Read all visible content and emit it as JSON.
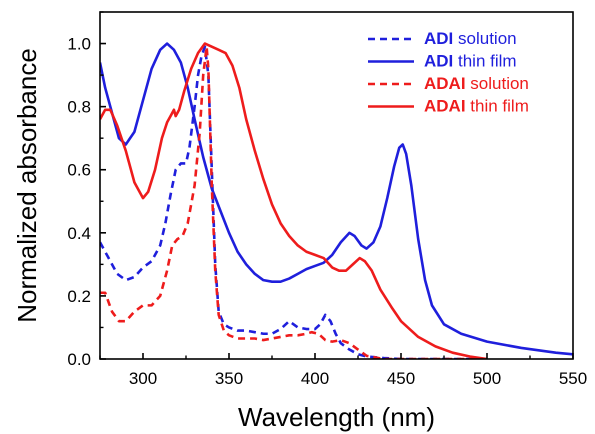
{
  "chart_data": {
    "type": "line",
    "xlabel": "Wavelength (nm)",
    "ylabel": "Normalized absorbance",
    "xlim": [
      275,
      550
    ],
    "ylim": [
      0.0,
      1.1
    ],
    "x_ticks": [
      300,
      350,
      400,
      450,
      500,
      550
    ],
    "x_tick_labels": [
      "300",
      "350",
      "400",
      "450",
      "500",
      "550"
    ],
    "y_ticks": [
      0.0,
      0.2,
      0.4,
      0.6,
      0.8,
      1.0
    ],
    "y_tick_labels": [
      "0.0",
      "0.2",
      "0.4",
      "0.6",
      "0.8",
      "1.0"
    ],
    "legend_position": "top-right",
    "series": [
      {
        "name": "ADI solution",
        "legend_bold": "ADI",
        "legend_rest": " solution",
        "color": "#1f1fdc",
        "style": "dashed",
        "points": [
          [
            275,
            0.37
          ],
          [
            280,
            0.32
          ],
          [
            285,
            0.27
          ],
          [
            290,
            0.25
          ],
          [
            295,
            0.26
          ],
          [
            300,
            0.29
          ],
          [
            305,
            0.31
          ],
          [
            310,
            0.36
          ],
          [
            313,
            0.43
          ],
          [
            316,
            0.52
          ],
          [
            319,
            0.6
          ],
          [
            322,
            0.62
          ],
          [
            325,
            0.62
          ],
          [
            327,
            0.67
          ],
          [
            330,
            0.8
          ],
          [
            332,
            0.9
          ],
          [
            334,
            0.96
          ],
          [
            336,
            0.99
          ],
          [
            338,
            0.9
          ],
          [
            340,
            0.6
          ],
          [
            342,
            0.3
          ],
          [
            344,
            0.15
          ],
          [
            347,
            0.11
          ],
          [
            350,
            0.1
          ],
          [
            355,
            0.09
          ],
          [
            360,
            0.09
          ],
          [
            365,
            0.085
          ],
          [
            370,
            0.08
          ],
          [
            375,
            0.08
          ],
          [
            380,
            0.095
          ],
          [
            385,
            0.12
          ],
          [
            390,
            0.1
          ],
          [
            395,
            0.095
          ],
          [
            400,
            0.095
          ],
          [
            403,
            0.11
          ],
          [
            406,
            0.14
          ],
          [
            409,
            0.12
          ],
          [
            412,
            0.08
          ],
          [
            415,
            0.05
          ],
          [
            420,
            0.03
          ],
          [
            425,
            0.015
          ],
          [
            430,
            0.008
          ],
          [
            440,
            0.003
          ],
          [
            450,
            0.0
          ],
          [
            500,
            0.0
          ]
        ]
      },
      {
        "name": "ADI thin film",
        "legend_bold": "ADI",
        "legend_rest": " thin film",
        "color": "#1f1fdc",
        "style": "solid",
        "points": [
          [
            275,
            0.94
          ],
          [
            278,
            0.86
          ],
          [
            282,
            0.78
          ],
          [
            286,
            0.7
          ],
          [
            290,
            0.68
          ],
          [
            295,
            0.72
          ],
          [
            300,
            0.82
          ],
          [
            305,
            0.92
          ],
          [
            310,
            0.98
          ],
          [
            314,
            1.0
          ],
          [
            318,
            0.98
          ],
          [
            322,
            0.94
          ],
          [
            326,
            0.86
          ],
          [
            330,
            0.76
          ],
          [
            335,
            0.64
          ],
          [
            340,
            0.54
          ],
          [
            345,
            0.47
          ],
          [
            350,
            0.4
          ],
          [
            355,
            0.34
          ],
          [
            360,
            0.3
          ],
          [
            365,
            0.27
          ],
          [
            370,
            0.25
          ],
          [
            375,
            0.245
          ],
          [
            380,
            0.245
          ],
          [
            385,
            0.255
          ],
          [
            390,
            0.27
          ],
          [
            395,
            0.285
          ],
          [
            400,
            0.295
          ],
          [
            405,
            0.305
          ],
          [
            410,
            0.33
          ],
          [
            415,
            0.37
          ],
          [
            420,
            0.4
          ],
          [
            423,
            0.39
          ],
          [
            427,
            0.36
          ],
          [
            430,
            0.35
          ],
          [
            434,
            0.37
          ],
          [
            438,
            0.42
          ],
          [
            442,
            0.51
          ],
          [
            446,
            0.61
          ],
          [
            449,
            0.67
          ],
          [
            451,
            0.68
          ],
          [
            453,
            0.65
          ],
          [
            456,
            0.55
          ],
          [
            460,
            0.38
          ],
          [
            464,
            0.25
          ],
          [
            468,
            0.17
          ],
          [
            475,
            0.11
          ],
          [
            485,
            0.08
          ],
          [
            500,
            0.055
          ],
          [
            520,
            0.035
          ],
          [
            540,
            0.02
          ],
          [
            550,
            0.015
          ]
        ]
      },
      {
        "name": "ADAI solution",
        "legend_bold": "ADAI",
        "legend_rest": " solution",
        "color": "#ee1c1c",
        "style": "dashed",
        "points": [
          [
            275,
            0.21
          ],
          [
            278,
            0.21
          ],
          [
            282,
            0.15
          ],
          [
            286,
            0.12
          ],
          [
            290,
            0.12
          ],
          [
            295,
            0.15
          ],
          [
            300,
            0.17
          ],
          [
            305,
            0.17
          ],
          [
            310,
            0.2
          ],
          [
            314,
            0.28
          ],
          [
            317,
            0.36
          ],
          [
            320,
            0.38
          ],
          [
            323,
            0.39
          ],
          [
            326,
            0.43
          ],
          [
            330,
            0.55
          ],
          [
            333,
            0.72
          ],
          [
            335,
            0.9
          ],
          [
            337,
            0.99
          ],
          [
            338,
            0.92
          ],
          [
            340,
            0.55
          ],
          [
            342,
            0.28
          ],
          [
            344,
            0.14
          ],
          [
            347,
            0.09
          ],
          [
            350,
            0.075
          ],
          [
            355,
            0.065
          ],
          [
            360,
            0.065
          ],
          [
            365,
            0.065
          ],
          [
            370,
            0.06
          ],
          [
            375,
            0.065
          ],
          [
            380,
            0.07
          ],
          [
            385,
            0.075
          ],
          [
            390,
            0.075
          ],
          [
            395,
            0.08
          ],
          [
            398,
            0.085
          ],
          [
            402,
            0.08
          ],
          [
            406,
            0.06
          ],
          [
            410,
            0.055
          ],
          [
            415,
            0.06
          ],
          [
            420,
            0.05
          ],
          [
            425,
            0.03
          ],
          [
            430,
            0.01
          ],
          [
            440,
            0.0
          ],
          [
            500,
            0.0
          ]
        ]
      },
      {
        "name": "ADAI thin film",
        "legend_bold": "ADAI",
        "legend_rest": " thin film",
        "color": "#ee1c1c",
        "style": "solid",
        "points": [
          [
            275,
            0.76
          ],
          [
            278,
            0.79
          ],
          [
            281,
            0.79
          ],
          [
            285,
            0.74
          ],
          [
            290,
            0.66
          ],
          [
            295,
            0.56
          ],
          [
            300,
            0.51
          ],
          [
            303,
            0.53
          ],
          [
            307,
            0.6
          ],
          [
            311,
            0.7
          ],
          [
            314,
            0.75
          ],
          [
            316,
            0.77
          ],
          [
            318,
            0.79
          ],
          [
            319,
            0.77
          ],
          [
            321,
            0.79
          ],
          [
            324,
            0.85
          ],
          [
            328,
            0.92
          ],
          [
            332,
            0.97
          ],
          [
            336,
            1.0
          ],
          [
            340,
            0.99
          ],
          [
            344,
            0.98
          ],
          [
            348,
            0.97
          ],
          [
            352,
            0.93
          ],
          [
            356,
            0.86
          ],
          [
            360,
            0.76
          ],
          [
            365,
            0.66
          ],
          [
            370,
            0.57
          ],
          [
            375,
            0.49
          ],
          [
            380,
            0.43
          ],
          [
            385,
            0.39
          ],
          [
            390,
            0.36
          ],
          [
            395,
            0.34
          ],
          [
            400,
            0.33
          ],
          [
            405,
            0.32
          ],
          [
            410,
            0.29
          ],
          [
            414,
            0.28
          ],
          [
            418,
            0.28
          ],
          [
            422,
            0.3
          ],
          [
            426,
            0.32
          ],
          [
            429,
            0.31
          ],
          [
            433,
            0.28
          ],
          [
            438,
            0.22
          ],
          [
            445,
            0.16
          ],
          [
            450,
            0.12
          ],
          [
            460,
            0.07
          ],
          [
            470,
            0.04
          ],
          [
            480,
            0.02
          ],
          [
            490,
            0.008
          ],
          [
            500,
            0.0
          ]
        ]
      }
    ]
  }
}
